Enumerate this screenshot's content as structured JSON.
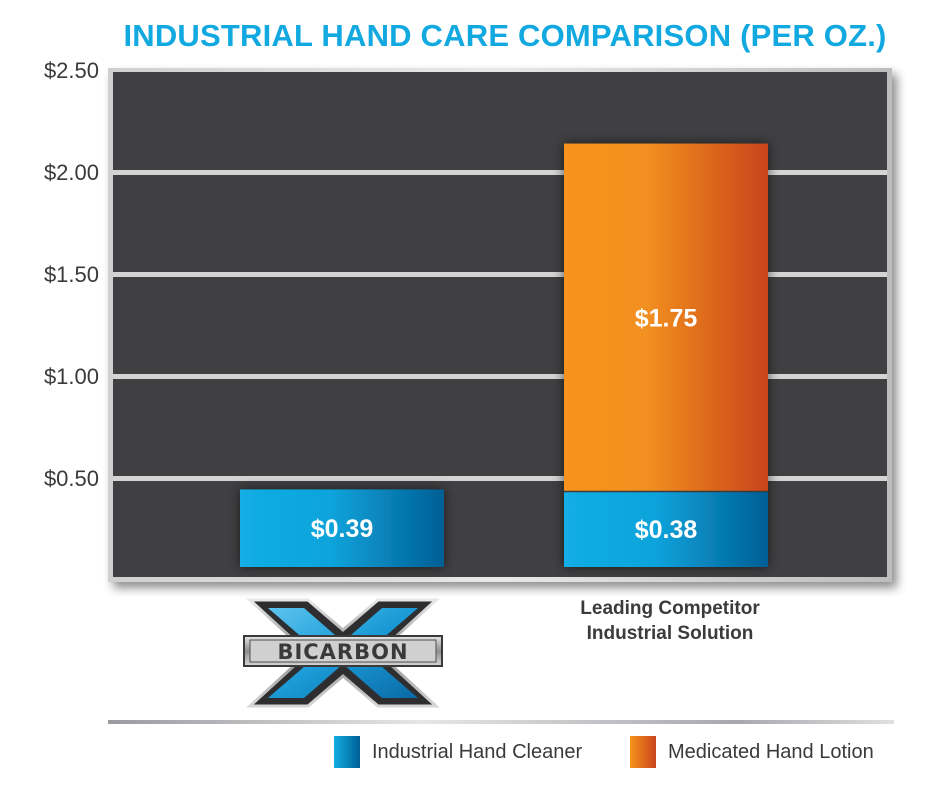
{
  "chart_data": {
    "type": "bar",
    "stacked": true,
    "title": "INDUSTRIAL HAND CARE COMPARISON (PER OZ.)",
    "xlabel": "",
    "ylabel": "",
    "ylim": [
      0,
      2.5
    ],
    "yticks": [
      0.5,
      1.0,
      1.5,
      2.0,
      2.5
    ],
    "ytick_labels": [
      "$0.50",
      "$1.00",
      "$1.50",
      "$2.00",
      "$2.50"
    ],
    "grid": true,
    "categories": [
      "BICARBON",
      "Leading Competitor Industrial Solution"
    ],
    "category_display": [
      {
        "type": "logo",
        "text": "BICARBON"
      },
      {
        "type": "text",
        "lines": [
          "Leading Competitor",
          "Industrial Solution"
        ]
      }
    ],
    "series": [
      {
        "name": "Industrial Hand Cleaner",
        "values": [
          0.39,
          0.38
        ],
        "labels": [
          "$0.39",
          "$0.38"
        ],
        "color_start": "#12aee4",
        "color_end": "#005f95"
      },
      {
        "name": "Medicated Hand Lotion",
        "values": [
          0,
          1.75
        ],
        "labels": [
          "",
          "$1.75"
        ],
        "color_start": "#f7931e",
        "color_end": "#c9441c"
      }
    ],
    "legend_placement": "bottom-right"
  },
  "colors": {
    "title": "#12a8e0",
    "plot_background": "#404042",
    "gridline": "#d4d4d4",
    "text": "#3a3a3a"
  },
  "legend": [
    {
      "label": "Industrial Hand Cleaner",
      "icon": "blue-swatch"
    },
    {
      "label": "Medicated Hand Lotion",
      "icon": "orange-swatch"
    }
  ],
  "logo": {
    "text": "BICARBON",
    "icon": "bicarbon-x-logo"
  }
}
